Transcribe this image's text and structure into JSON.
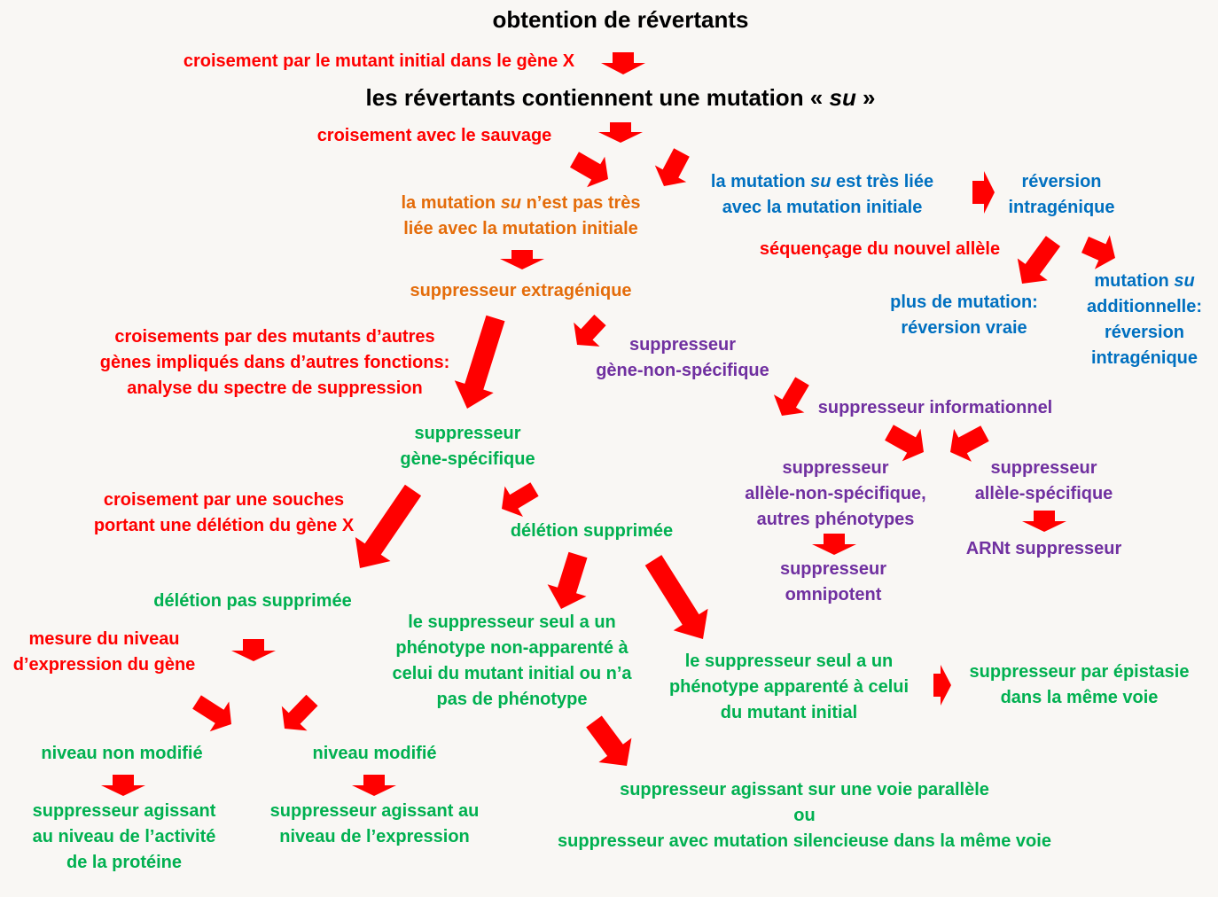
{
  "colors": {
    "red": "#ff0000",
    "orange": "#e46c0a",
    "blue": "#0070c0",
    "purple": "#7030a0",
    "green": "#00b050",
    "black": "#000000",
    "arrow": "#ff0000",
    "background": "#f9f7f4"
  },
  "nodes": {
    "title": "obtention de révertants",
    "cross_initial": "croisement par le mutant initial dans le gène X",
    "su_pre": "les révertants contiennent une mutation « ",
    "su_em": "su",
    "su_post": " »",
    "cross_wild": "croisement avec le sauvage",
    "not_linked_1_pre": "la mutation ",
    "not_linked_1_em": "su",
    "not_linked_1_post": " n’est pas très",
    "not_linked_2": "liée avec la mutation initiale",
    "linked_1_pre": "la mutation ",
    "linked_1_em": "su",
    "linked_1_post": " est très liée",
    "linked_2": "avec la mutation initiale",
    "reversion_intra_1": "réversion",
    "reversion_intra_2": "intragénique",
    "sequencing": "séquençage du nouvel allèle",
    "no_mutation_1": "plus de mutation:",
    "no_mutation_2": "réversion vraie",
    "additional_1_pre": "mutation ",
    "additional_1_em": "su",
    "additional_2": "additionnelle:",
    "additional_3": "réversion",
    "additional_4": "intragénique",
    "extragenic": "suppresseur extragénique",
    "spectrum_1": "croisements par des mutants d’autres",
    "spectrum_2": "gènes impliqués dans d’autres fonctions:",
    "spectrum_3": "analyse du spectre de suppression",
    "gene_nonspecific_1": "suppresseur",
    "gene_nonspecific_2": "gène-non-spécifique",
    "informational": "suppresseur informationnel",
    "allele_nonspecific_1": "suppresseur",
    "allele_nonspecific_2": "allèle-non-spécifique,",
    "allele_nonspecific_3": "autres phénotypes",
    "allele_specific_1": "suppresseur",
    "allele_specific_2": "allèle-spécifique",
    "omnipotent_1": "suppresseur",
    "omnipotent_2": "omnipotent",
    "trna": "ARNt suppresseur",
    "gene_specific_1": "suppresseur",
    "gene_specific_2": "gène-spécifique",
    "deletion_cross_1": "croisement par une souches",
    "deletion_cross_2": "portant une délétion du gène X",
    "deletion_suppressed": "délétion supprimée",
    "deletion_not_suppressed": "délétion pas supprimée",
    "unrelated_1": "le suppresseur seul a un",
    "unrelated_2": "phénotype non-apparenté à",
    "unrelated_3": "celui du mutant initial ou n’a",
    "unrelated_4": "pas de phénotype",
    "related_1": "le suppresseur seul a un",
    "related_2": "phénotype apparenté à celui",
    "related_3": "du mutant initial",
    "epistasis_1": "suppresseur par épistasie",
    "epistasis_2": "dans la même voie",
    "parallel_1": "suppresseur agissant sur une voie parallèle",
    "parallel_2": "ou",
    "parallel_3": "suppresseur avec mutation silencieuse dans la même voie",
    "measure_1": "mesure du niveau",
    "measure_2": "d’expression du gène",
    "level_unchanged": "niveau non modifié",
    "level_changed": "niveau modifié",
    "protein_activity_1": "suppresseur agissant",
    "protein_activity_2": "au niveau de l’activité",
    "protein_activity_3": "de la protéine",
    "expression_level_1": "suppresseur agissant au",
    "expression_level_2": "niveau de l’expression"
  }
}
